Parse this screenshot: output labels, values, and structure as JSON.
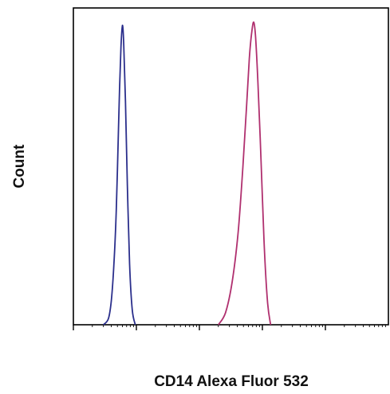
{
  "chart_data": {
    "type": "area",
    "title": "",
    "xlabel": "CD14 Alexa Fluor 532",
    "ylabel": "Count",
    "x_scale": "log",
    "xlim": [
      1,
      100000
    ],
    "ylim": [
      0,
      100
    ],
    "grid": false,
    "legend": "none",
    "series": [
      {
        "color": "#2b2f8c",
        "x": [
          3.0,
          3.6,
          4.0,
          4.4,
          4.8,
          5.1,
          5.4,
          5.7,
          6.0,
          6.3,
          6.7,
          7.2,
          7.8,
          8.6,
          9.6
        ],
        "y": [
          0,
          2,
          8,
          20,
          38,
          58,
          78,
          92,
          99,
          93,
          74,
          46,
          20,
          5,
          0
        ]
      },
      {
        "color": "#b0306f",
        "x": [
          200,
          260,
          330,
          410,
          490,
          560,
          620,
          680,
          730,
          780,
          850,
          950,
          1060,
          1200,
          1350
        ],
        "y": [
          0,
          4,
          14,
          30,
          52,
          72,
          88,
          97,
          100,
          95,
          80,
          55,
          28,
          8,
          0
        ]
      }
    ]
  }
}
